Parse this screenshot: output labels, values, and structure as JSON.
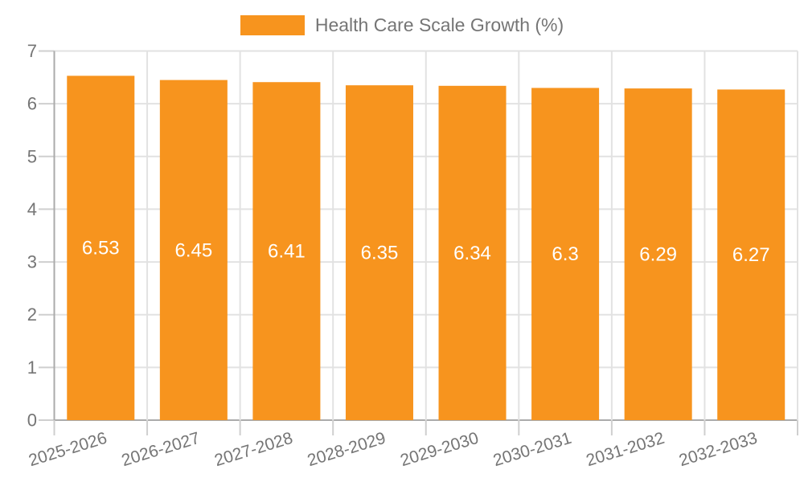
{
  "legend": {
    "label": "Health Care Scale Growth (%)",
    "color": "#f7941e"
  },
  "chart_data": {
    "type": "bar",
    "title": "Health Care Scale Growth (%)",
    "categories": [
      "2025-2026",
      "2026-2027",
      "2027-2028",
      "2028-2029",
      "2029-2030",
      "2030-2031",
      "2031-2032",
      "2032-2033"
    ],
    "values": [
      6.53,
      6.45,
      6.41,
      6.35,
      6.34,
      6.3,
      6.29,
      6.27
    ],
    "xlabel": "",
    "ylabel": "",
    "ylim": [
      0,
      7
    ],
    "yticks": [
      0,
      1,
      2,
      3,
      4,
      5,
      6,
      7
    ],
    "grid": true,
    "legend_position": "top-center",
    "x_label_rotation_deg": -17,
    "colors": {
      "bar": "#f7941e",
      "bar_label": "#ffffff",
      "grid": "#e2e2e2",
      "axis": "#ababab",
      "tick": "#cfcfcf",
      "tick_label": "#757575"
    }
  }
}
